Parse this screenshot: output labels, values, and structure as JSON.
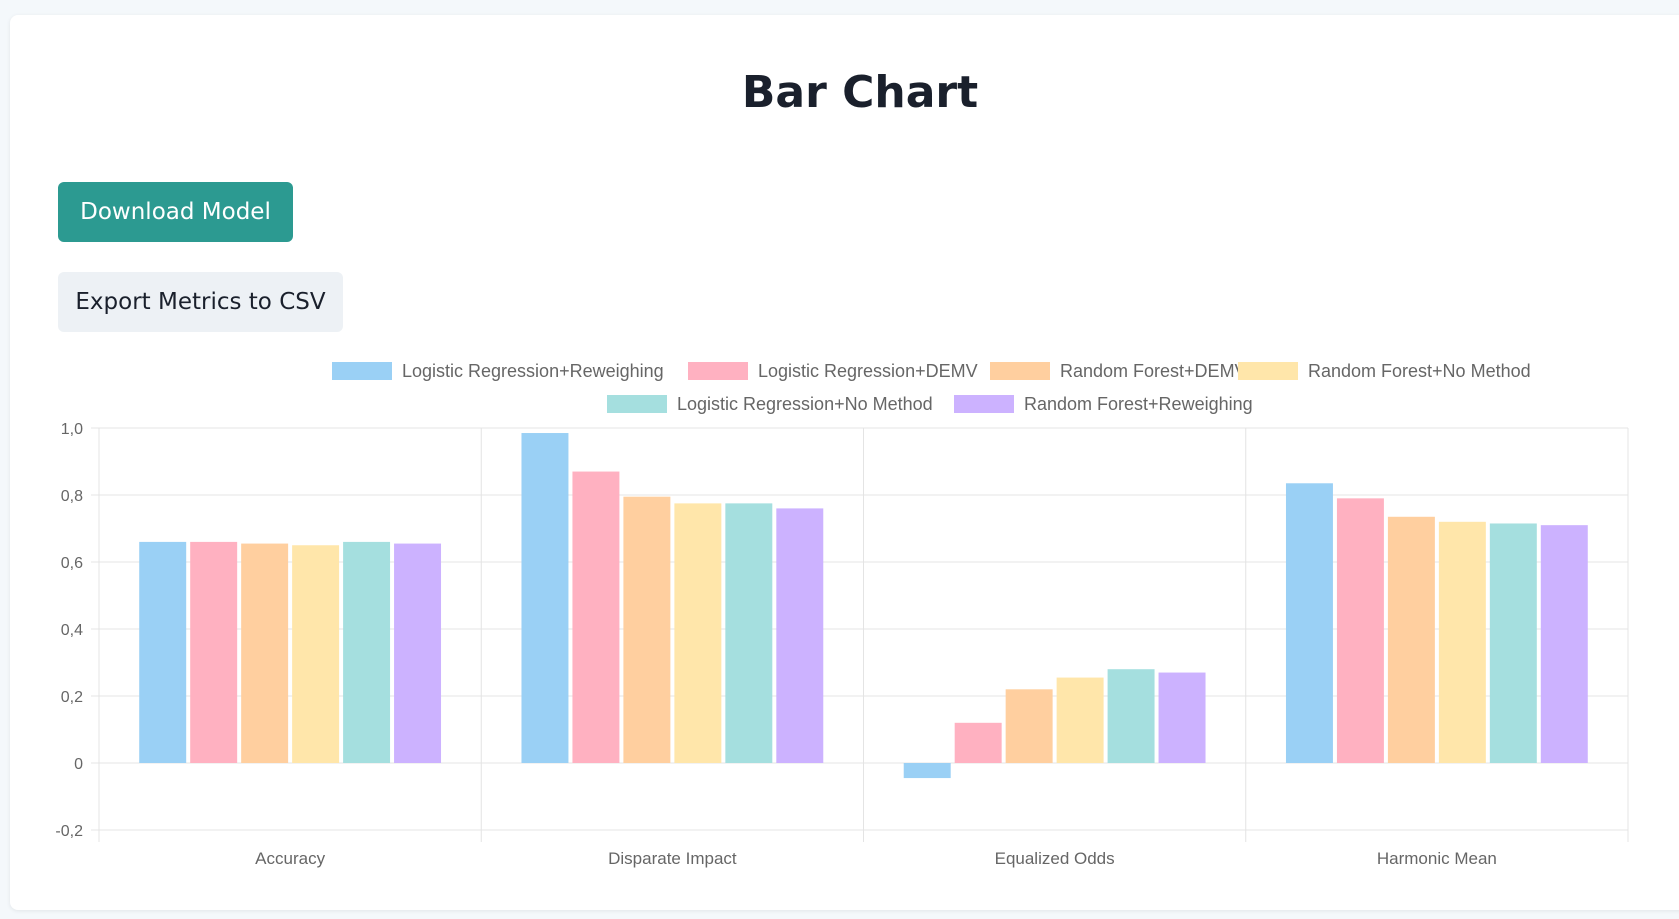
{
  "page": {
    "title": "Bar Chart"
  },
  "actions": {
    "download_label": "Download Model",
    "export_label": "Export Metrics to CSV"
  },
  "colors": {
    "primary_button": "#2c9a91",
    "secondary_button": "#edf1f5"
  },
  "chart_data": {
    "type": "bar",
    "categories": [
      "Accuracy",
      "Disparate Impact",
      "Equalized Odds",
      "Harmonic Mean"
    ],
    "series": [
      {
        "name": "Logistic Regression+Reweighing",
        "color": "#9ad0f5",
        "values": [
          0.66,
          0.985,
          -0.045,
          0.835
        ]
      },
      {
        "name": "Logistic Regression+DEMV",
        "color": "#ffb1c1",
        "values": [
          0.66,
          0.87,
          0.12,
          0.79
        ]
      },
      {
        "name": "Random Forest+DEMV",
        "color": "#ffcf9f",
        "values": [
          0.655,
          0.795,
          0.22,
          0.735
        ]
      },
      {
        "name": "Random Forest+No Method",
        "color": "#ffe6aa",
        "values": [
          0.65,
          0.775,
          0.255,
          0.72
        ]
      },
      {
        "name": "Logistic Regression+No Method",
        "color": "#a5dfdf",
        "values": [
          0.66,
          0.775,
          0.28,
          0.715
        ]
      },
      {
        "name": "Random Forest+Reweighing",
        "color": "#ccb2ff",
        "values": [
          0.655,
          0.76,
          0.27,
          0.71
        ]
      }
    ],
    "y_ticks": [
      "-0,2",
      "0",
      "0,2",
      "0,4",
      "0,6",
      "0,8",
      "1,0"
    ],
    "ylim": [
      -0.2,
      1.0
    ],
    "grid": true,
    "legend_position": "top"
  }
}
